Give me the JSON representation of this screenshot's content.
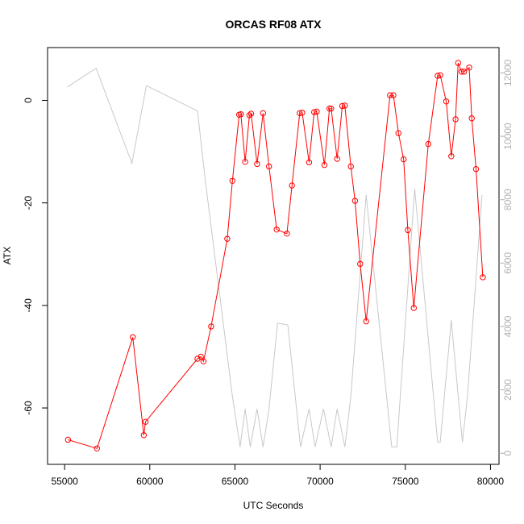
{
  "chart_data": {
    "type": "line",
    "title": "ORCAS RF08 ATX",
    "xlabel": "UTC Seconds",
    "ylabel": "ATX",
    "xlim": [
      54000,
      80500
    ],
    "ylim": [
      -71,
      10.3
    ],
    "y2lim": [
      -350,
      12800
    ],
    "x_ticks": [
      55000,
      60000,
      65000,
      70000,
      75000,
      80000
    ],
    "y_ticks": [
      0,
      -20,
      -40,
      -60
    ],
    "y2_ticks": [
      0,
      2000,
      4000,
      6000,
      8000,
      10000,
      12000
    ],
    "x_tick_labels": [
      "55000",
      "60000",
      "65000",
      "70000",
      "75000",
      "80000"
    ],
    "y_tick_labels": [
      "0",
      "-20",
      "-40",
      "-60"
    ],
    "y2_tick_labels": [
      "0",
      "2000",
      "4000",
      "6000",
      "8000",
      "10000",
      "12000"
    ],
    "grid": false,
    "series": [
      {
        "color": "#ff0000",
        "marker": "circle",
        "axis": "left",
        "x": [
          55200,
          56900,
          59000,
          59650,
          59750,
          62800,
          63000,
          63150,
          63600,
          64550,
          64850,
          65250,
          65350,
          65600,
          65850,
          65950,
          66300,
          66650,
          67000,
          67450,
          68050,
          68350,
          68800,
          68950,
          69350,
          69650,
          69800,
          70250,
          70550,
          70650,
          71000,
          71300,
          71450,
          71800,
          72050,
          72350,
          72700,
          74100,
          74300,
          74600,
          74900,
          75150,
          75500,
          76350,
          76900,
          77050,
          77400,
          77700,
          77950,
          78100,
          78300,
          78450,
          78750,
          78900,
          79150,
          79550
        ],
        "y": [
          -66.2,
          -67.9,
          -46.2,
          -65.3,
          -62.7,
          -50.4,
          -50.0,
          -50.9,
          -44.1,
          -27.0,
          -15.7,
          -2.8,
          -2.7,
          -12.0,
          -2.9,
          -2.6,
          -12.4,
          -2.5,
          -12.9,
          -25.2,
          -26.0,
          -16.6,
          -2.5,
          -2.4,
          -12.1,
          -2.3,
          -2.2,
          -12.6,
          -1.6,
          -1.6,
          -11.4,
          -1.1,
          -1.0,
          -12.9,
          -19.6,
          -31.9,
          -43.1,
          1.0,
          1.0,
          -6.4,
          -11.5,
          -25.3,
          -40.5,
          -8.5,
          4.8,
          4.9,
          -0.2,
          -10.9,
          -3.7,
          7.3,
          5.6,
          5.6,
          6.4,
          -3.5,
          -13.4,
          -34.5
        ]
      },
      {
        "color": "#c8c8c8",
        "marker": "none",
        "axis": "right",
        "x": [
          55150,
          56850,
          58950,
          59800,
          62800,
          63250,
          64850,
          65300,
          65600,
          65900,
          66300,
          66650,
          67000,
          67500,
          68100,
          68850,
          69350,
          69700,
          70200,
          70650,
          71000,
          71450,
          71800,
          72700,
          74200,
          74500,
          75550,
          76900,
          77050,
          77700,
          78350,
          78650,
          79500
        ],
        "y": [
          11550,
          12150,
          9150,
          11600,
          10800,
          8650,
          1800,
          200,
          1400,
          200,
          1400,
          200,
          1400,
          4100,
          4050,
          200,
          1400,
          200,
          1400,
          200,
          1400,
          200,
          1800,
          8150,
          200,
          200,
          8350,
          350,
          350,
          4200,
          350,
          1800,
          8150
        ]
      }
    ]
  }
}
